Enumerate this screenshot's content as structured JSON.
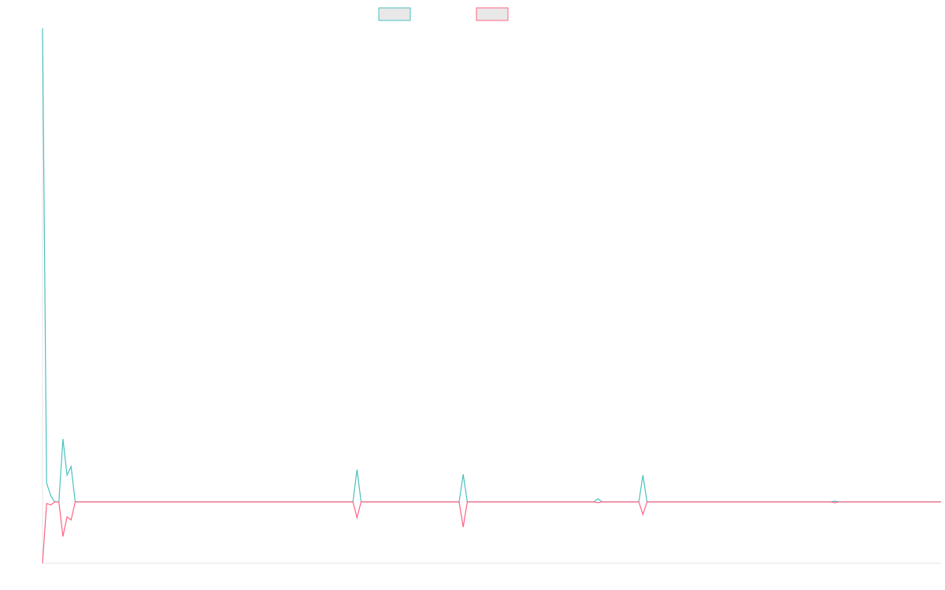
{
  "chart_data": {
    "type": "line",
    "x": [
      0,
      1,
      2,
      3,
      4,
      5,
      6,
      7,
      8,
      76,
      77,
      78,
      102,
      103,
      104,
      135,
      136,
      137,
      146,
      147,
      148,
      193,
      194,
      195,
      220
    ],
    "xlim": [
      0,
      220
    ],
    "ylim": [
      -78,
      602
    ],
    "legend": "top",
    "series": [
      {
        "color": "#4bc0c0",
        "values": [
          602,
          24,
          8,
          0,
          0,
          80,
          34,
          45,
          0,
          0,
          41,
          0,
          0,
          35,
          0,
          0,
          4,
          0,
          0,
          34,
          0,
          0,
          1,
          0,
          0
        ]
      },
      {
        "color": "#ff6384",
        "values": [
          -78,
          -2,
          -4,
          0,
          0,
          -44,
          -19,
          -23,
          0,
          0,
          -20,
          0,
          0,
          -32,
          0,
          0,
          -1,
          0,
          0,
          -16,
          0,
          0,
          -1,
          0,
          0
        ]
      }
    ]
  }
}
